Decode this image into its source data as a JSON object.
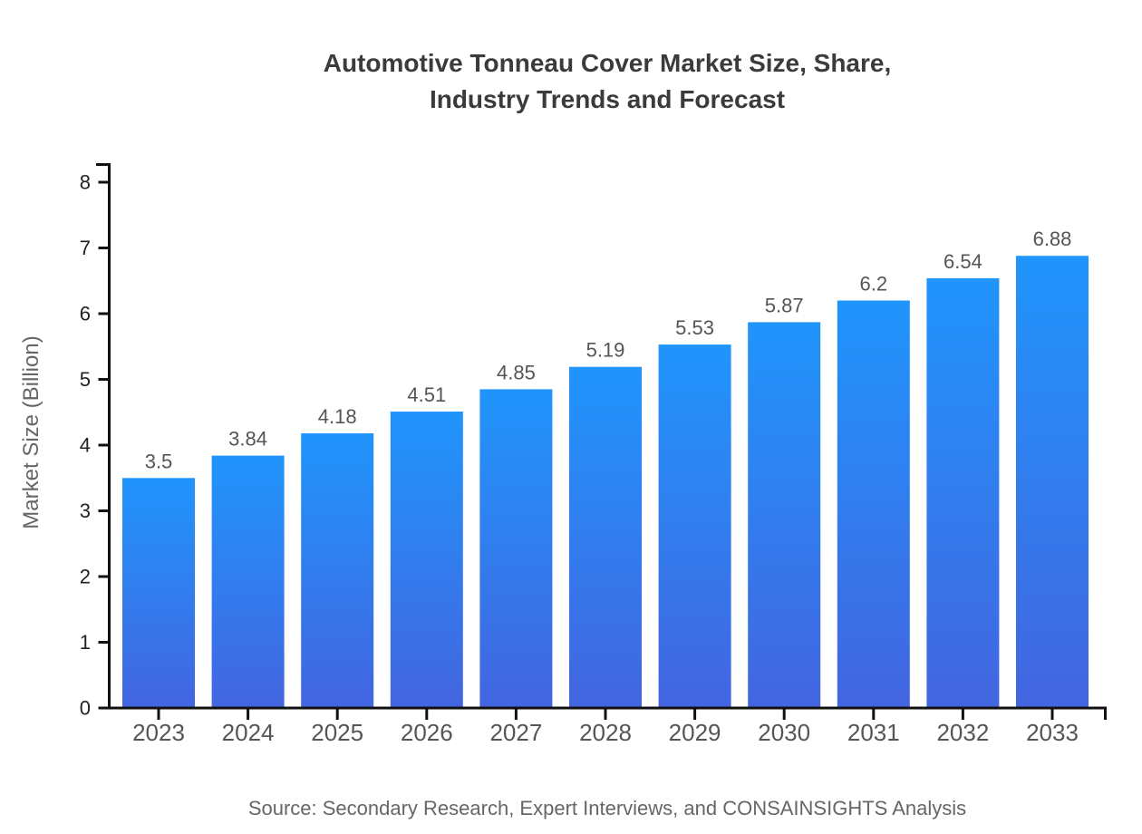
{
  "page": {
    "background": "#ffffff"
  },
  "figure": {
    "title_line1": "Automotive Tonneau Cover Market Size, Share,",
    "title_line2": "Industry Trends and Forecast",
    "ylabel": "Market Size (Billion)",
    "source": "Source: Secondary Research, Expert Interviews, and CONSAINSIGHTS Analysis"
  },
  "chart_data": {
    "type": "bar",
    "title": "Automotive Tonneau Cover Market Size, Share, Industry Trends and Forecast",
    "categories": [
      "2023",
      "2024",
      "2025",
      "2026",
      "2027",
      "2028",
      "2029",
      "2030",
      "2031",
      "2032",
      "2033"
    ],
    "values": [
      3.5,
      3.84,
      4.18,
      4.51,
      4.85,
      5.19,
      5.53,
      5.87,
      6.2,
      6.54,
      6.88
    ],
    "value_labels": [
      "3.5",
      "3.84",
      "4.18",
      "4.51",
      "4.85",
      "5.19",
      "5.53",
      "5.87",
      "6.2",
      "6.54",
      "6.88"
    ],
    "xlabel": "",
    "ylabel": "Market Size (Billion)",
    "ylim": [
      0,
      8
    ],
    "yticks": [
      0,
      1,
      2,
      3,
      4,
      5,
      6,
      7,
      8
    ],
    "grid": false,
    "legend": false,
    "source": "Source: Secondary Research, Expert Interviews, and CONSAINSIGHTS Analysis",
    "colors": {
      "bar_gradient_top": "#2095fc",
      "bar_gradient_bottom": "#4365e0",
      "axis": "#111111",
      "y_tick_label": "#222222",
      "x_tick_label": "#555555",
      "value_label": "#555555",
      "title": "#3b3b3b",
      "axis_label": "#666666",
      "source": "#666666"
    }
  }
}
